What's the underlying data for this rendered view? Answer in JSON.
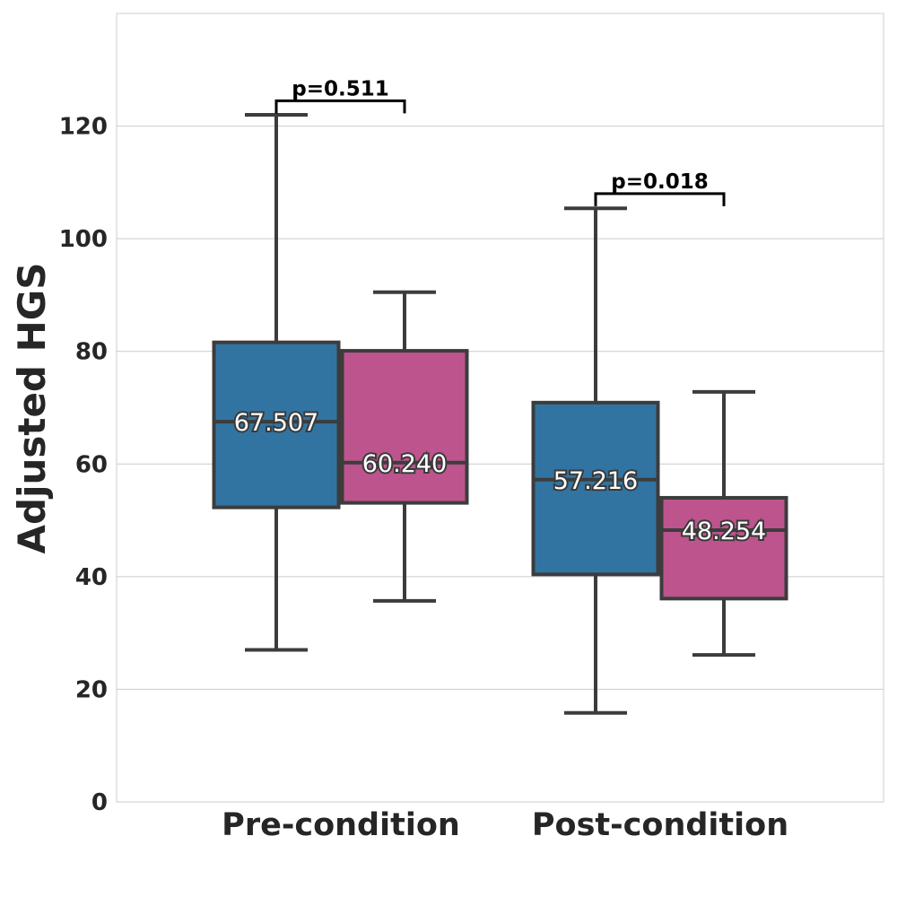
{
  "chart_data": {
    "type": "box",
    "ylabel": "Adjusted HGS",
    "xlabel": "",
    "title": "",
    "ylim": [
      0,
      140
    ],
    "yticks": [
      0,
      20,
      40,
      60,
      80,
      100,
      120
    ],
    "grid": "horizontal",
    "categories": [
      "Pre-condition",
      "Post-condition"
    ],
    "colors": [
      "#3274a1",
      "#bd548d"
    ],
    "edge_color": "#3c3c3c",
    "groups": [
      {
        "category": "Pre-condition",
        "boxes": [
          {
            "whisker_low": 27,
            "q1": 52.3,
            "median": 67.507,
            "q3": 81.6,
            "whisker_high": 122,
            "label": "67.507"
          },
          {
            "whisker_low": 35.7,
            "q1": 53.1,
            "median": 60.24,
            "q3": 80.1,
            "whisker_high": 90.5,
            "label": "60.240"
          }
        ],
        "annotation": {
          "text": "p=0.511",
          "y": 124.5
        }
      },
      {
        "category": "Post-condition",
        "boxes": [
          {
            "whisker_low": 15.8,
            "q1": 40.4,
            "median": 57.216,
            "q3": 70.9,
            "whisker_high": 105.4,
            "label": "57.216"
          },
          {
            "whisker_low": 26.1,
            "q1": 36.1,
            "median": 48.254,
            "q3": 54,
            "whisker_high": 72.8,
            "label": "48.254"
          }
        ],
        "annotation": {
          "text": "p=0.018",
          "y": 108
        }
      }
    ]
  }
}
